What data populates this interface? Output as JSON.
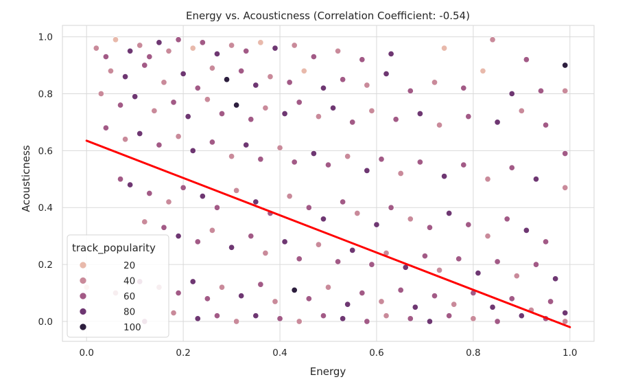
{
  "chart_data": {
    "type": "scatter",
    "title": "Energy vs. Acousticness (Correlation Coefficient: -0.54)",
    "xlabel": "Energy",
    "ylabel": "Acousticness",
    "xlim": [
      -0.05,
      1.05
    ],
    "ylim": [
      -0.07,
      1.04
    ],
    "xticks": [
      "0.0",
      "0.2",
      "0.4",
      "0.6",
      "0.8",
      "1.0"
    ],
    "xtick_values": [
      0.0,
      0.2,
      0.4,
      0.6,
      0.8,
      1.0
    ],
    "yticks": [
      "0.0",
      "0.2",
      "0.4",
      "0.6",
      "0.8",
      "1.0"
    ],
    "ytick_values": [
      0.0,
      0.2,
      0.4,
      0.6,
      0.8,
      1.0
    ],
    "grid": true,
    "background": "#ffffff",
    "grid_color": "#d9d9d9",
    "hue": {
      "name": "track_popularity",
      "levels": [
        {
          "label": "20",
          "value": 20,
          "color": "#e8b9ab"
        },
        {
          "label": "40",
          "value": 40,
          "color": "#c98a9a"
        },
        {
          "label": "60",
          "value": 60,
          "color": "#a25a86"
        },
        {
          "label": "80",
          "value": 80,
          "color": "#6e3772"
        },
        {
          "label": "100",
          "value": 100,
          "color": "#2d1e3e"
        }
      ]
    },
    "legend_position": "lower-left",
    "trend_line": {
      "color": "#ff0000",
      "points": [
        [
          0.0,
          0.635
        ],
        [
          1.0,
          -0.02
        ]
      ]
    },
    "points": [
      [
        0.02,
        0.96,
        40
      ],
      [
        0.04,
        0.93,
        60
      ],
      [
        0.06,
        0.99,
        20
      ],
      [
        0.09,
        0.95,
        80
      ],
      [
        0.11,
        0.97,
        40
      ],
      [
        0.13,
        0.93,
        60
      ],
      [
        0.15,
        0.98,
        80
      ],
      [
        0.17,
        0.95,
        40
      ],
      [
        0.19,
        0.99,
        60
      ],
      [
        0.22,
        0.96,
        20
      ],
      [
        0.24,
        0.98,
        60
      ],
      [
        0.27,
        0.94,
        80
      ],
      [
        0.3,
        0.97,
        40
      ],
      [
        0.33,
        0.95,
        60
      ],
      [
        0.36,
        0.98,
        20
      ],
      [
        0.39,
        0.96,
        80
      ],
      [
        0.43,
        0.97,
        40
      ],
      [
        0.47,
        0.93,
        60
      ],
      [
        0.52,
        0.95,
        40
      ],
      [
        0.57,
        0.92,
        60
      ],
      [
        0.63,
        0.94,
        80
      ],
      [
        0.74,
        0.96,
        20
      ],
      [
        0.84,
        0.99,
        40
      ],
      [
        0.91,
        0.92,
        60
      ],
      [
        0.99,
        0.9,
        100
      ],
      [
        0.05,
        0.88,
        40
      ],
      [
        0.08,
        0.86,
        80
      ],
      [
        0.12,
        0.9,
        60
      ],
      [
        0.16,
        0.84,
        40
      ],
      [
        0.2,
        0.87,
        80
      ],
      [
        0.23,
        0.82,
        60
      ],
      [
        0.26,
        0.89,
        40
      ],
      [
        0.29,
        0.85,
        100
      ],
      [
        0.32,
        0.88,
        60
      ],
      [
        0.35,
        0.83,
        80
      ],
      [
        0.38,
        0.86,
        40
      ],
      [
        0.42,
        0.84,
        60
      ],
      [
        0.45,
        0.88,
        20
      ],
      [
        0.49,
        0.82,
        80
      ],
      [
        0.53,
        0.85,
        60
      ],
      [
        0.58,
        0.83,
        40
      ],
      [
        0.62,
        0.87,
        80
      ],
      [
        0.67,
        0.81,
        60
      ],
      [
        0.72,
        0.84,
        40
      ],
      [
        0.78,
        0.82,
        60
      ],
      [
        0.82,
        0.88,
        20
      ],
      [
        0.88,
        0.8,
        80
      ],
      [
        0.94,
        0.81,
        60
      ],
      [
        0.99,
        0.81,
        40
      ],
      [
        0.03,
        0.8,
        40
      ],
      [
        0.07,
        0.76,
        60
      ],
      [
        0.1,
        0.79,
        80
      ],
      [
        0.14,
        0.74,
        40
      ],
      [
        0.18,
        0.77,
        60
      ],
      [
        0.21,
        0.72,
        80
      ],
      [
        0.25,
        0.78,
        40
      ],
      [
        0.28,
        0.73,
        60
      ],
      [
        0.31,
        0.76,
        100
      ],
      [
        0.34,
        0.71,
        60
      ],
      [
        0.37,
        0.75,
        40
      ],
      [
        0.41,
        0.73,
        80
      ],
      [
        0.44,
        0.77,
        60
      ],
      [
        0.48,
        0.72,
        40
      ],
      [
        0.51,
        0.75,
        80
      ],
      [
        0.55,
        0.7,
        60
      ],
      [
        0.59,
        0.74,
        40
      ],
      [
        0.64,
        0.71,
        60
      ],
      [
        0.69,
        0.73,
        80
      ],
      [
        0.73,
        0.69,
        40
      ],
      [
        0.79,
        0.72,
        60
      ],
      [
        0.85,
        0.7,
        80
      ],
      [
        0.9,
        0.74,
        40
      ],
      [
        0.95,
        0.69,
        60
      ],
      [
        0.04,
        0.68,
        60
      ],
      [
        0.08,
        0.64,
        40
      ],
      [
        0.11,
        0.66,
        80
      ],
      [
        0.15,
        0.62,
        60
      ],
      [
        0.19,
        0.65,
        40
      ],
      [
        0.22,
        0.6,
        80
      ],
      [
        0.26,
        0.63,
        60
      ],
      [
        0.3,
        0.58,
        40
      ],
      [
        0.33,
        0.62,
        80
      ],
      [
        0.36,
        0.57,
        60
      ],
      [
        0.4,
        0.61,
        40
      ],
      [
        0.43,
        0.56,
        60
      ],
      [
        0.47,
        0.59,
        80
      ],
      [
        0.5,
        0.55,
        60
      ],
      [
        0.54,
        0.58,
        40
      ],
      [
        0.58,
        0.53,
        80
      ],
      [
        0.61,
        0.57,
        60
      ],
      [
        0.65,
        0.52,
        40
      ],
      [
        0.69,
        0.56,
        60
      ],
      [
        0.74,
        0.51,
        80
      ],
      [
        0.78,
        0.55,
        60
      ],
      [
        0.83,
        0.5,
        40
      ],
      [
        0.88,
        0.54,
        60
      ],
      [
        0.93,
        0.5,
        80
      ],
      [
        0.99,
        0.59,
        60
      ],
      [
        0.07,
        0.5,
        60
      ],
      [
        0.09,
        0.48,
        80
      ],
      [
        0.13,
        0.45,
        60
      ],
      [
        0.17,
        0.42,
        40
      ],
      [
        0.2,
        0.47,
        60
      ],
      [
        0.24,
        0.44,
        80
      ],
      [
        0.27,
        0.4,
        60
      ],
      [
        0.31,
        0.46,
        40
      ],
      [
        0.35,
        0.42,
        80
      ],
      [
        0.38,
        0.38,
        60
      ],
      [
        0.42,
        0.44,
        40
      ],
      [
        0.46,
        0.4,
        60
      ],
      [
        0.49,
        0.36,
        80
      ],
      [
        0.53,
        0.42,
        60
      ],
      [
        0.56,
        0.38,
        40
      ],
      [
        0.6,
        0.34,
        80
      ],
      [
        0.63,
        0.4,
        60
      ],
      [
        0.67,
        0.36,
        40
      ],
      [
        0.71,
        0.33,
        60
      ],
      [
        0.75,
        0.38,
        80
      ],
      [
        0.79,
        0.34,
        60
      ],
      [
        0.83,
        0.3,
        40
      ],
      [
        0.87,
        0.36,
        60
      ],
      [
        0.91,
        0.32,
        80
      ],
      [
        0.95,
        0.28,
        60
      ],
      [
        0.99,
        0.47,
        40
      ],
      [
        0.12,
        0.35,
        40
      ],
      [
        0.16,
        0.33,
        60
      ],
      [
        0.19,
        0.3,
        80
      ],
      [
        0.23,
        0.28,
        60
      ],
      [
        0.26,
        0.32,
        40
      ],
      [
        0.3,
        0.26,
        80
      ],
      [
        0.34,
        0.3,
        60
      ],
      [
        0.37,
        0.24,
        40
      ],
      [
        0.41,
        0.28,
        80
      ],
      [
        0.44,
        0.22,
        60
      ],
      [
        0.48,
        0.27,
        40
      ],
      [
        0.52,
        0.21,
        60
      ],
      [
        0.55,
        0.25,
        80
      ],
      [
        0.59,
        0.2,
        60
      ],
      [
        0.62,
        0.24,
        40
      ],
      [
        0.66,
        0.19,
        80
      ],
      [
        0.7,
        0.23,
        60
      ],
      [
        0.73,
        0.18,
        40
      ],
      [
        0.77,
        0.22,
        60
      ],
      [
        0.81,
        0.17,
        80
      ],
      [
        0.85,
        0.21,
        60
      ],
      [
        0.89,
        0.16,
        40
      ],
      [
        0.93,
        0.2,
        60
      ],
      [
        0.97,
        0.15,
        80
      ],
      [
        0.0,
        0.12,
        20
      ],
      [
        0.06,
        0.1,
        40
      ],
      [
        0.11,
        0.14,
        60
      ],
      [
        0.15,
        0.12,
        40
      ],
      [
        0.19,
        0.1,
        60
      ],
      [
        0.22,
        0.14,
        80
      ],
      [
        0.25,
        0.08,
        60
      ],
      [
        0.28,
        0.12,
        40
      ],
      [
        0.32,
        0.09,
        80
      ],
      [
        0.36,
        0.13,
        60
      ],
      [
        0.39,
        0.07,
        40
      ],
      [
        0.43,
        0.11,
        100
      ],
      [
        0.46,
        0.08,
        60
      ],
      [
        0.5,
        0.12,
        40
      ],
      [
        0.54,
        0.06,
        80
      ],
      [
        0.57,
        0.1,
        60
      ],
      [
        0.61,
        0.07,
        40
      ],
      [
        0.65,
        0.11,
        60
      ],
      [
        0.68,
        0.05,
        80
      ],
      [
        0.72,
        0.09,
        60
      ],
      [
        0.76,
        0.06,
        40
      ],
      [
        0.8,
        0.1,
        60
      ],
      [
        0.84,
        0.05,
        80
      ],
      [
        0.88,
        0.08,
        60
      ],
      [
        0.92,
        0.04,
        40
      ],
      [
        0.96,
        0.07,
        60
      ],
      [
        0.99,
        0.03,
        80
      ],
      [
        0.12,
        0.0,
        60
      ],
      [
        0.18,
        0.03,
        40
      ],
      [
        0.23,
        0.01,
        80
      ],
      [
        0.27,
        0.02,
        60
      ],
      [
        0.31,
        0.0,
        40
      ],
      [
        0.35,
        0.02,
        80
      ],
      [
        0.4,
        0.01,
        60
      ],
      [
        0.44,
        0.0,
        40
      ],
      [
        0.49,
        0.02,
        60
      ],
      [
        0.53,
        0.01,
        80
      ],
      [
        0.58,
        0.0,
        60
      ],
      [
        0.62,
        0.02,
        40
      ],
      [
        0.67,
        0.01,
        60
      ],
      [
        0.71,
        0.0,
        80
      ],
      [
        0.75,
        0.02,
        60
      ],
      [
        0.8,
        0.01,
        40
      ],
      [
        0.85,
        0.0,
        60
      ],
      [
        0.9,
        0.02,
        80
      ],
      [
        0.95,
        0.01,
        60
      ],
      [
        0.99,
        0.0,
        40
      ]
    ]
  }
}
